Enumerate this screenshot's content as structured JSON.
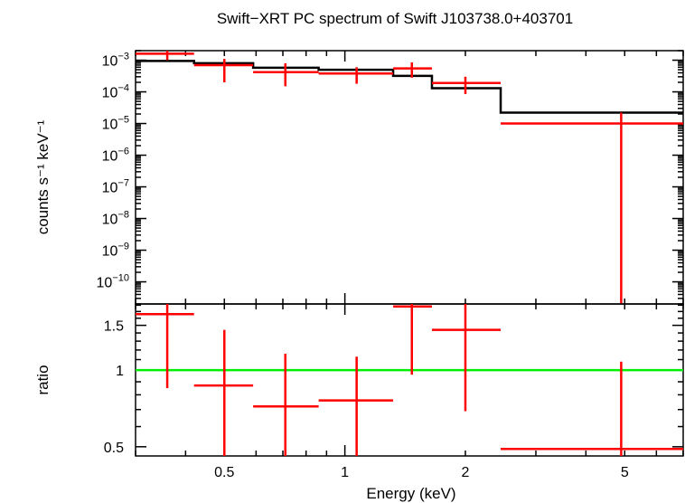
{
  "chart_data": [
    {
      "type": "line",
      "panel": "spectrum",
      "title": "Swift−XRT PC spectrum of Swift J103738.0+403701",
      "ylabel": "counts s⁻¹ keV⁻¹",
      "yscale": "log",
      "xscale": "log",
      "xlim": [
        0.3,
        7.0
      ],
      "ylim": [
        2e-11,
        0.002
      ],
      "ytick_labels": [
        {
          "value": 0.001,
          "mant": "10",
          "exp": "−3"
        },
        {
          "value": 0.0001,
          "mant": "10",
          "exp": "−4"
        },
        {
          "value": 1e-05,
          "mant": "10",
          "exp": "−5"
        },
        {
          "value": 1e-06,
          "mant": "10",
          "exp": "−6"
        },
        {
          "value": 1e-07,
          "mant": "10",
          "exp": "−7"
        },
        {
          "value": 1e-08,
          "mant": "10",
          "exp": "−8"
        },
        {
          "value": 1e-09,
          "mant": "10",
          "exp": "−9"
        },
        {
          "value": 1e-10,
          "mant": "10",
          "exp": "−10"
        }
      ],
      "series": [
        {
          "color": "#ff0000",
          "points": [
            {
              "x": 0.36,
              "xlo": 0.3,
              "xhi": 0.42,
              "y": 0.0016,
              "ylo": 0.001,
              "yhi": 0.002
            },
            {
              "x": 0.5,
              "xlo": 0.42,
              "xhi": 0.59,
              "y": 0.0007,
              "ylo": 0.0002,
              "yhi": 0.0011
            },
            {
              "x": 0.71,
              "xlo": 0.59,
              "xhi": 0.86,
              "y": 0.00042,
              "ylo": 0.00015,
              "yhi": 0.0008
            },
            {
              "x": 1.07,
              "xlo": 0.86,
              "xhi": 1.32,
              "y": 0.00038,
              "ylo": 0.00018,
              "yhi": 0.0006
            },
            {
              "x": 1.47,
              "xlo": 1.32,
              "xhi": 1.65,
              "y": 0.00055,
              "ylo": 0.00028,
              "yhi": 0.00085
            },
            {
              "x": 2.0,
              "xlo": 1.65,
              "xhi": 2.45,
              "y": 0.00019,
              "ylo": 8.5e-05,
              "yhi": 0.0003
            },
            {
              "x": 4.9,
              "xlo": 2.45,
              "xhi": 7.0,
              "y": 1e-05,
              "ylo": 2e-11,
              "yhi": 2.2e-05
            }
          ]
        },
        {
          "color": "#000000",
          "step": [
            {
              "xlo": 0.3,
              "xhi": 0.42,
              "y": 0.00095
            },
            {
              "xlo": 0.42,
              "xhi": 0.59,
              "y": 0.0008
            },
            {
              "xlo": 0.59,
              "xhi": 0.86,
              "y": 0.00058
            },
            {
              "xlo": 0.86,
              "xhi": 1.32,
              "y": 0.0005
            },
            {
              "xlo": 1.32,
              "xhi": 1.65,
              "y": 0.00032
            },
            {
              "xlo": 1.65,
              "xhi": 2.45,
              "y": 0.00013
            },
            {
              "xlo": 2.45,
              "xhi": 7.0,
              "y": 2.2e-05
            }
          ]
        }
      ]
    },
    {
      "type": "line",
      "panel": "ratio",
      "ylabel": "ratio",
      "xlabel": "Energy (keV)",
      "xscale": "log",
      "yscale": "log",
      "xlim": [
        0.3,
        7.0
      ],
      "ylim": [
        0.46,
        1.82
      ],
      "xtick_labels": [
        {
          "value": 0.5,
          "label": "0.5"
        },
        {
          "value": 1,
          "label": "1"
        },
        {
          "value": 2,
          "label": "2"
        },
        {
          "value": 5,
          "label": "5"
        }
      ],
      "ytick_labels": [
        {
          "value": 0.5,
          "label": "0.5"
        },
        {
          "value": 1,
          "label": "1"
        },
        {
          "value": 1.5,
          "label": "1.5"
        }
      ],
      "reference_line": {
        "y": 1.0,
        "color": "#00ee00"
      },
      "series": [
        {
          "color": "#ff0000",
          "points": [
            {
              "x": 0.36,
              "xlo": 0.3,
              "xhi": 0.42,
              "y": 1.66,
              "ylo": 0.85,
              "yhi": 1.82
            },
            {
              "x": 0.5,
              "xlo": 0.42,
              "xhi": 0.59,
              "y": 0.87,
              "ylo": 0.46,
              "yhi": 1.44
            },
            {
              "x": 0.71,
              "xlo": 0.59,
              "xhi": 0.86,
              "y": 0.72,
              "ylo": 0.46,
              "yhi": 1.16
            },
            {
              "x": 1.07,
              "xlo": 0.86,
              "xhi": 1.32,
              "y": 0.76,
              "ylo": 0.46,
              "yhi": 1.13
            },
            {
              "x": 1.47,
              "xlo": 1.32,
              "xhi": 1.65,
              "y": 1.78,
              "ylo": 0.96,
              "yhi": 1.82
            },
            {
              "x": 2.0,
              "xlo": 1.65,
              "xhi": 2.45,
              "y": 1.44,
              "ylo": 0.69,
              "yhi": 1.82
            },
            {
              "x": 4.9,
              "xlo": 2.45,
              "xhi": 7.0,
              "y": 0.49,
              "ylo": 0.46,
              "yhi": 1.08
            }
          ]
        }
      ]
    }
  ]
}
